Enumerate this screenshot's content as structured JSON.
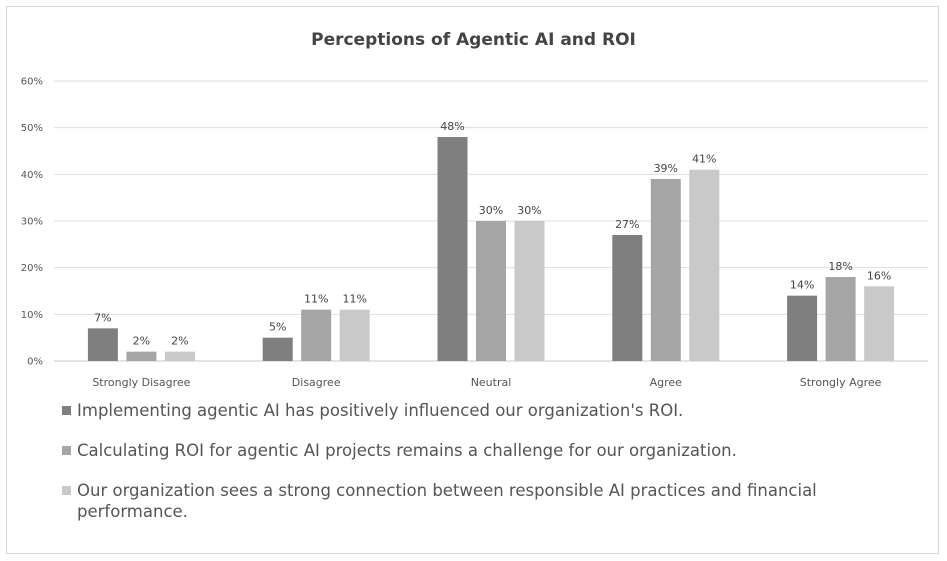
{
  "chart_data": {
    "type": "bar",
    "title": "Perceptions of Agentic AI and ROI",
    "categories": [
      "Strongly Disagree",
      "Disagree",
      "Neutral",
      "Agree",
      "Strongly Agree"
    ],
    "series": [
      {
        "name": "Implementing agentic AI has positively influenced our organization's ROI.",
        "color": "#7f7f7f",
        "values": [
          7,
          5,
          48,
          27,
          14
        ],
        "labels": [
          "7%",
          "5%",
          "48%",
          "27%",
          "14%"
        ]
      },
      {
        "name": "Calculating ROI for agentic AI projects remains a challenge for our organization.",
        "color": "#a5a5a5",
        "values": [
          2,
          11,
          30,
          39,
          18
        ],
        "labels": [
          "2%",
          "11%",
          "30%",
          "39%",
          "18%"
        ]
      },
      {
        "name": "Our organization sees a strong connection between responsible AI practices and financial performance.",
        "color": "#c9c9c9",
        "values": [
          2,
          11,
          30,
          41,
          16
        ],
        "labels": [
          "2%",
          "11%",
          "30%",
          "41%",
          "16%"
        ]
      }
    ],
    "yticks": [
      "0%",
      "10%",
      "20%",
      "30%",
      "40%",
      "50%",
      "60%"
    ],
    "ylim": [
      0,
      60
    ],
    "grid": true,
    "legend_position": "bottom"
  }
}
